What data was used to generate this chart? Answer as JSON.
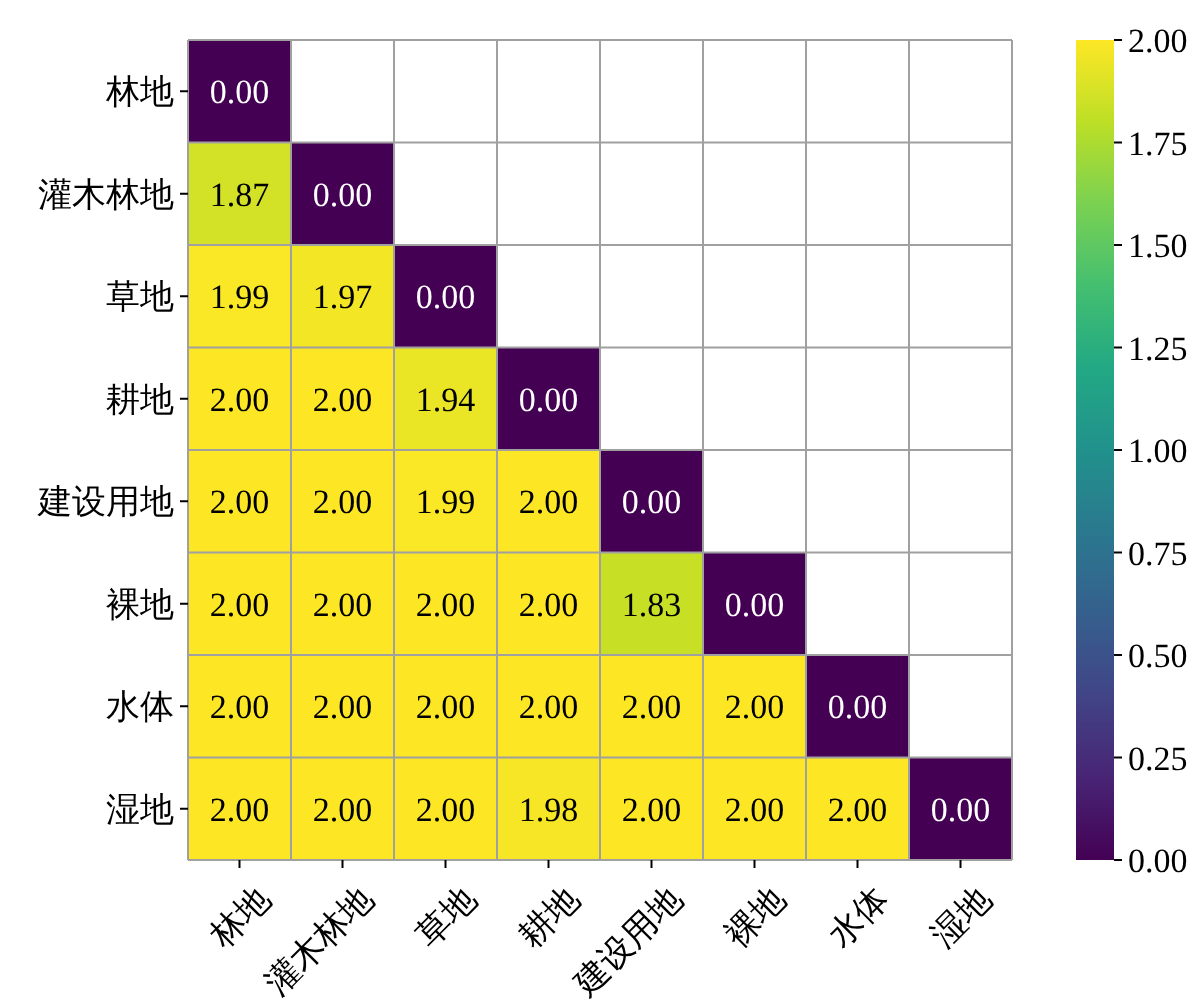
{
  "chart_data": {
    "type": "heatmap",
    "categories": [
      "林地",
      "灌木林地",
      "草地",
      "耕地",
      "建设用地",
      "裸地",
      "水体",
      "湿地"
    ],
    "y_categories": [
      "林地",
      "灌木林地",
      "草地",
      "耕地",
      "建设用地",
      "裸地",
      "水体",
      "湿地"
    ],
    "cells": [
      [
        0.0,
        null,
        null,
        null,
        null,
        null,
        null,
        null
      ],
      [
        1.87,
        0.0,
        null,
        null,
        null,
        null,
        null,
        null
      ],
      [
        1.99,
        1.97,
        0.0,
        null,
        null,
        null,
        null,
        null
      ],
      [
        2.0,
        2.0,
        1.94,
        0.0,
        null,
        null,
        null,
        null
      ],
      [
        2.0,
        2.0,
        1.99,
        2.0,
        0.0,
        null,
        null,
        null
      ],
      [
        2.0,
        2.0,
        2.0,
        2.0,
        1.83,
        0.0,
        null,
        null
      ],
      [
        2.0,
        2.0,
        2.0,
        2.0,
        2.0,
        2.0,
        0.0,
        null
      ],
      [
        2.0,
        2.0,
        2.0,
        1.98,
        2.0,
        2.0,
        2.0,
        0.0
      ]
    ],
    "clim": [
      0,
      2
    ],
    "cticks": [
      {
        "value": 0,
        "label": "0.00"
      },
      {
        "value": 0.25,
        "label": "0.25"
      },
      {
        "value": 0.5,
        "label": "0.50"
      },
      {
        "value": 0.75,
        "label": "0.75"
      },
      {
        "value": 1,
        "label": "1.00"
      },
      {
        "value": 1.25,
        "label": "1.25"
      },
      {
        "value": 1.5,
        "label": "1.50"
      },
      {
        "value": 1.75,
        "label": "1.75"
      },
      {
        "value": 2,
        "label": "2.00"
      }
    ],
    "cell_labels": [
      [
        "0.00",
        null,
        null,
        null,
        null,
        null,
        null,
        null
      ],
      [
        "1.87",
        "0.00",
        null,
        null,
        null,
        null,
        null,
        null
      ],
      [
        "1.99",
        "1.97",
        "0.00",
        null,
        null,
        null,
        null,
        null
      ],
      [
        "2.00",
        "2.00",
        "1.94",
        "0.00",
        null,
        null,
        null,
        null
      ],
      [
        "2.00",
        "2.00",
        "1.99",
        "2.00",
        "0.00",
        null,
        null,
        null
      ],
      [
        "2.00",
        "2.00",
        "2.00",
        "2.00",
        "1.83",
        "0.00",
        null,
        null
      ],
      [
        "2.00",
        "2.00",
        "2.00",
        "2.00",
        "2.00",
        "2.00",
        "0.00",
        null
      ],
      [
        "2.00",
        "2.00",
        "2.00",
        "1.98",
        "2.00",
        "2.00",
        "2.00",
        "0.00"
      ]
    ]
  }
}
